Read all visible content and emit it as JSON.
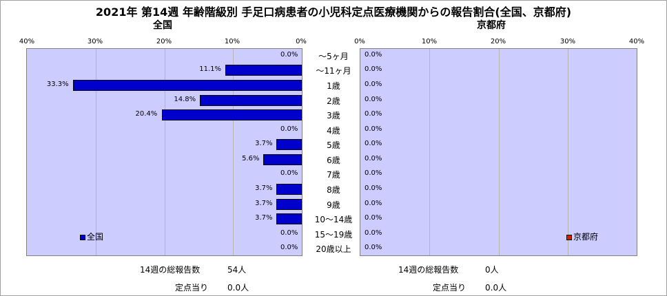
{
  "title": "2021年 第14週 年齢階級別 手足口病患者の小児科定点医療機関からの報告割合(全国、京都府)",
  "chart_data": [
    {
      "type": "bar",
      "subtitle": "全国",
      "orientation": "horizontal",
      "direction": "right-to-left",
      "categories": [
        "～5ヶ月",
        "～11ヶ月",
        "1歳",
        "2歳",
        "3歳",
        "4歳",
        "5歳",
        "6歳",
        "7歳",
        "8歳",
        "9歳",
        "10～14歳",
        "15～19歳",
        "20歳以上"
      ],
      "series": [
        {
          "name": "全国",
          "color": "#0000cc",
          "values": [
            0.0,
            11.1,
            33.3,
            14.8,
            20.4,
            0.0,
            3.7,
            5.6,
            0.0,
            3.7,
            3.7,
            3.7,
            0.0,
            0.0
          ],
          "labels": [
            "0.0%",
            "11.1%",
            "33.3%",
            "14.8%",
            "20.4%",
            "0.0%",
            "3.7%",
            "5.6%",
            "0.0%",
            "3.7%",
            "3.7%",
            "3.7%",
            "0.0%",
            "0.0%"
          ]
        }
      ],
      "xlim": [
        0,
        40
      ],
      "ticks": [
        "0%",
        "10%",
        "20%",
        "30%",
        "40%"
      ],
      "legend": "lower-left"
    },
    {
      "type": "bar",
      "subtitle": "京都府",
      "orientation": "horizontal",
      "direction": "left-to-right",
      "categories": [
        "～5ヶ月",
        "～11ヶ月",
        "1歳",
        "2歳",
        "3歳",
        "4歳",
        "5歳",
        "6歳",
        "7歳",
        "8歳",
        "9歳",
        "10～14歳",
        "15～19歳",
        "20歳以上"
      ],
      "series": [
        {
          "name": "京都府",
          "color": "#cc2200",
          "values": [
            0,
            0,
            0,
            0,
            0,
            0,
            0,
            0,
            0,
            0,
            0,
            0,
            0,
            0
          ],
          "labels": [
            "0.0%",
            "0.0%",
            "0.0%",
            "0.0%",
            "0.0%",
            "0.0%",
            "0.0%",
            "0.0%",
            "0.0%",
            "0.0%",
            "0.0%",
            "0.0%",
            "0.0%",
            "0.0%"
          ]
        }
      ],
      "xlim": [
        0,
        40
      ],
      "ticks": [
        "0%",
        "10%",
        "20%",
        "30%",
        "40%"
      ],
      "legend": "lower-right"
    }
  ],
  "footer": {
    "left": {
      "total_label": "14週の総報告数",
      "total_value": "54人",
      "per_label": "定点当り",
      "per_value": "0.0人"
    },
    "right": {
      "total_label": "14週の総報告数",
      "total_value": "0人",
      "per_label": "定点当り",
      "per_value": "0.0人"
    }
  }
}
